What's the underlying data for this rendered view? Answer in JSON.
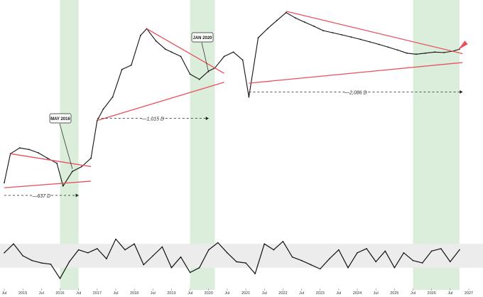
{
  "colors": {
    "price": "#111111",
    "trendline": "#e8505b",
    "highlight": "#cfe8cf",
    "band": "#ececec",
    "oscillator": "#111111",
    "arrow": "#e8505b",
    "dashed": "#222222"
  },
  "chart_data": [
    {
      "type": "line",
      "title": "",
      "xlabel": "",
      "ylabel": "",
      "x_ticks": [
        "Jul",
        "2015",
        "Jul",
        "2016",
        "Jul",
        "2017",
        "Jul",
        "2018",
        "Jul",
        "2019",
        "Jul",
        "2020",
        "Jul",
        "2021",
        "Jul",
        "2022",
        "Jul",
        "2023",
        "Jul",
        "2024",
        "Jul",
        "2025",
        "Jul",
        "2026",
        "Jul",
        "2027"
      ],
      "x_range": [
        "2014-07",
        "2027-01"
      ],
      "y_scale": "log",
      "grid": false,
      "legend": "none",
      "series": [
        {
          "name": "",
          "x": [
            "2014-07",
            "2014-09",
            "2014-12",
            "2015-03",
            "2015-06",
            "2015-09",
            "2015-12",
            "2016-02",
            "2016-05",
            "2016-08",
            "2016-11",
            "2017-01",
            "2017-03",
            "2017-06",
            "2017-09",
            "2017-12",
            "2018-03",
            "2018-05",
            "2018-08",
            "2018-11",
            "2019-01",
            "2019-04",
            "2019-07",
            "2019-10",
            "2020-01",
            "2020-03",
            "2020-06",
            "2020-09",
            "2020-12",
            "2021-02",
            "2021-05",
            "2021-08",
            "2021-11",
            "2022-02",
            "2022-05",
            "2022-08",
            "2022-11",
            "2023-02",
            "2023-05",
            "2023-08",
            "2023-11",
            "2024-02",
            "2024-05",
            "2024-08",
            "2024-11",
            "2025-02",
            "2025-05",
            "2025-08",
            "2025-11",
            "2026-02",
            "2026-05",
            "2026-08",
            "2026-10"
          ],
          "values": [
            0.3,
            0.55,
            0.62,
            0.6,
            0.56,
            0.5,
            0.45,
            0.28,
            0.38,
            0.42,
            0.5,
            1.1,
            1.4,
            1.8,
            3.2,
            3.5,
            6.5,
            7.5,
            5.8,
            4.9,
            4.6,
            4.2,
            2.9,
            2.6,
            3.1,
            3.3,
            4.2,
            4.6,
            3.9,
            1.8,
            6.2,
            7.5,
            8.9,
            10.5,
            9.4,
            8.6,
            7.9,
            7.2,
            6.9,
            6.6,
            6.3,
            6.0,
            5.7,
            5.4,
            5.1,
            4.8,
            4.5,
            4.4,
            4.5,
            4.6,
            4.55,
            4.7,
            4.9
          ]
        }
      ],
      "annotations": [
        {
          "type": "callout",
          "text": "MAY 2016",
          "x": "2016-05"
        },
        {
          "type": "callout",
          "text": "JAN 2020",
          "x": "2020-01"
        },
        {
          "type": "distance",
          "text": "637 D"
        },
        {
          "type": "distance",
          "text": "1,015 D"
        },
        {
          "type": "distance",
          "text": "2,086 D"
        }
      ],
      "highlight_periods": [
        [
          "2016-01",
          "2016-07"
        ],
        [
          "2019-07",
          "2020-03"
        ],
        [
          "2025-07",
          "2026-10"
        ]
      ],
      "trendlines": 8
    },
    {
      "type": "line",
      "title": "",
      "xlabel": "",
      "ylabel": "",
      "x_range": [
        "2014-07",
        "2027-01"
      ],
      "band": [
        30,
        70
      ],
      "ylim": [
        0,
        100
      ],
      "series": [
        {
          "name": "",
          "x": [
            "2014-07",
            "2014-10",
            "2015-01",
            "2015-04",
            "2015-07",
            "2015-10",
            "2016-01",
            "2016-04",
            "2016-07",
            "2016-10",
            "2017-01",
            "2017-04",
            "2017-07",
            "2017-10",
            "2018-01",
            "2018-04",
            "2018-07",
            "2018-10",
            "2019-01",
            "2019-04",
            "2019-07",
            "2019-10",
            "2020-01",
            "2020-04",
            "2020-07",
            "2020-10",
            "2021-01",
            "2021-04",
            "2021-07",
            "2021-10",
            "2022-01",
            "2022-04",
            "2022-07",
            "2022-10",
            "2023-01",
            "2023-04",
            "2023-07",
            "2023-10",
            "2024-01",
            "2024-04",
            "2024-07",
            "2024-10",
            "2025-01",
            "2025-04",
            "2025-07",
            "2025-10",
            "2026-01",
            "2026-04",
            "2026-07",
            "2026-10"
          ],
          "values": [
            55,
            70,
            50,
            42,
            38,
            36,
            12,
            40,
            60,
            55,
            62,
            45,
            78,
            60,
            70,
            35,
            50,
            65,
            30,
            48,
            22,
            30,
            60,
            72,
            55,
            40,
            38,
            20,
            70,
            60,
            74,
            48,
            42,
            35,
            28,
            45,
            60,
            30,
            55,
            62,
            40,
            58,
            30,
            55,
            42,
            38,
            58,
            62,
            40,
            60
          ]
        }
      ]
    }
  ]
}
